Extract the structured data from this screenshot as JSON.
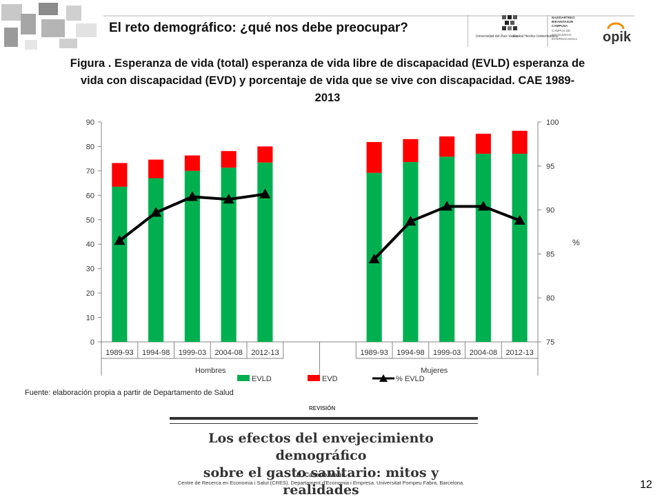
{
  "header": {
    "title": "El reto demográfico: ¿qué nos debe preocupar?",
    "logo_upv_left": "Universidad del País Vasco",
    "logo_upv_right": "Euskal Herriko Unibertsitatea",
    "campus_lines": [
      "NAZIOARTEKO",
      "BIKAINTASUN",
      "CAMPUSA",
      "CAMPUS DE",
      "EXCELENCIA",
      "INTERNACIONAL"
    ],
    "logo_opik": "opik"
  },
  "figure_title": "Figura . Esperanza de vida (total) esperanza de vida libre de discapacidad (EVLD) esperanza de vida con discapacidad (EVD) y porcentaje de vida que se vive con discapacidad. CAE 1989-2013",
  "chart_data": {
    "type": "bar",
    "stacked": true,
    "groups": [
      "Hombres",
      "Mujeres"
    ],
    "categories": [
      "1989-93",
      "1994-98",
      "1999-03",
      "2004-08",
      "2012-13"
    ],
    "series": [
      {
        "name": "EVLD",
        "axis": "left",
        "color": "#00b050",
        "values": {
          "Hombres": [
            63.5,
            67.0,
            70.0,
            71.3,
            73.4
          ],
          "Mujeres": [
            69.2,
            73.6,
            75.8,
            77.0,
            77.0
          ]
        }
      },
      {
        "name": "EVD",
        "axis": "left",
        "color": "#ff0000",
        "values": {
          "Hombres": [
            9.7,
            7.6,
            6.3,
            6.8,
            6.6
          ],
          "Mujeres": [
            12.6,
            9.4,
            8.3,
            8.2,
            9.4
          ]
        }
      },
      {
        "name": "% EVLD",
        "axis": "right",
        "type": "line",
        "marker": "triangle",
        "color": "#000000",
        "values": {
          "Hombres": [
            86.5,
            89.7,
            91.5,
            91.2,
            91.8
          ],
          "Mujeres": [
            84.4,
            88.7,
            90.4,
            90.4,
            88.8
          ]
        }
      }
    ],
    "y_left": {
      "min": 0,
      "max": 90,
      "ticks": [
        0,
        10,
        20,
        30,
        40,
        50,
        60,
        70,
        80,
        90
      ]
    },
    "y_right": {
      "min": 75,
      "max": 100,
      "ticks": [
        75,
        80,
        85,
        90,
        95,
        100
      ],
      "label": "%"
    },
    "legend": "bottom",
    "grid": false
  },
  "source": "Fuente: elaboración propia a partir de Departamento de Salud",
  "paper": {
    "section": "REVISIÓN",
    "title_line1": "Los efectos del envejecimiento demográfico",
    "title_line2": "sobre el gasto sanitario: mitos y realidades",
    "author": "D. Casado Marín",
    "institution": "Centre de Recerca en Economia i Salut (CRES). Departament d'Economia i Empresa. Universitat Pompeu Fabra. Barcelona."
  },
  "page_number": "12"
}
